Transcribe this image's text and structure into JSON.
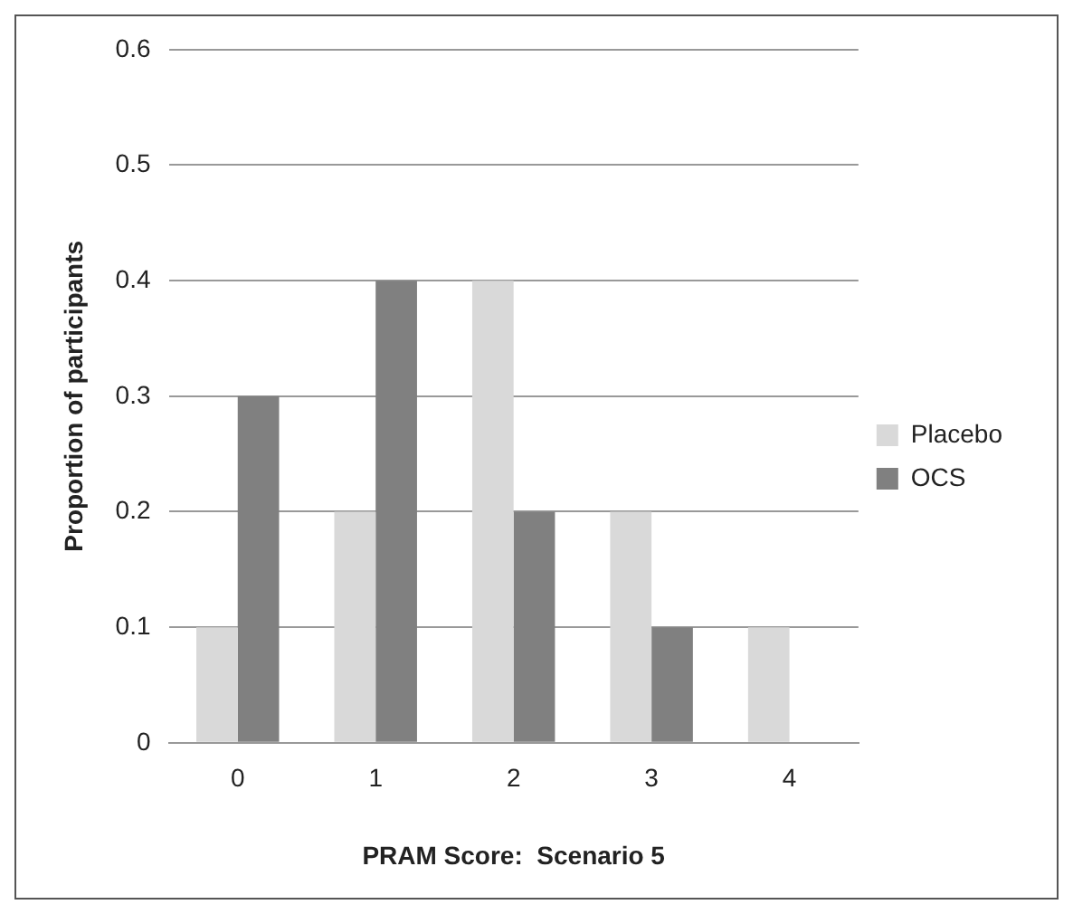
{
  "chart_data": {
    "type": "bar",
    "xlabel": "PRAM Score:  Scenario 5",
    "ylabel": "Proportion of participants",
    "categories": [
      "0",
      "1",
      "2",
      "3",
      "4"
    ],
    "series": [
      {
        "name": "Placebo",
        "color": "#d9d9d9",
        "values": [
          0.1,
          0.2,
          0.4,
          0.2,
          0.1
        ]
      },
      {
        "name": "OCS",
        "color": "#808080",
        "values": [
          0.3,
          0.4,
          0.2,
          0.1,
          0
        ]
      }
    ],
    "ylim": [
      0,
      0.6
    ],
    "yticks": [
      0,
      0.1,
      0.2,
      0.3,
      0.4,
      0.5,
      0.6
    ],
    "grid": "y",
    "legend": "right"
  }
}
